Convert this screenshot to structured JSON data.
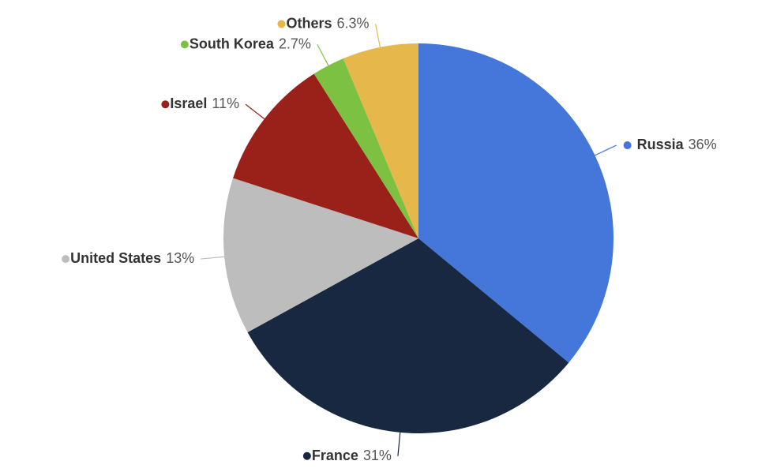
{
  "chart_data": {
    "type": "pie",
    "categories": [
      "Russia",
      "France",
      "United States",
      "Israel",
      "South Korea",
      "Others"
    ],
    "values": [
      36,
      31,
      13,
      11,
      2.7,
      6.3
    ],
    "value_labels": [
      "36%",
      "31%",
      "13%",
      "11%",
      "2.7%",
      "6.3%"
    ],
    "colors": [
      "#4477d9",
      "#172840",
      "#bdbdbd",
      "#9a2119",
      "#7dc143",
      "#e6b74a"
    ]
  }
}
